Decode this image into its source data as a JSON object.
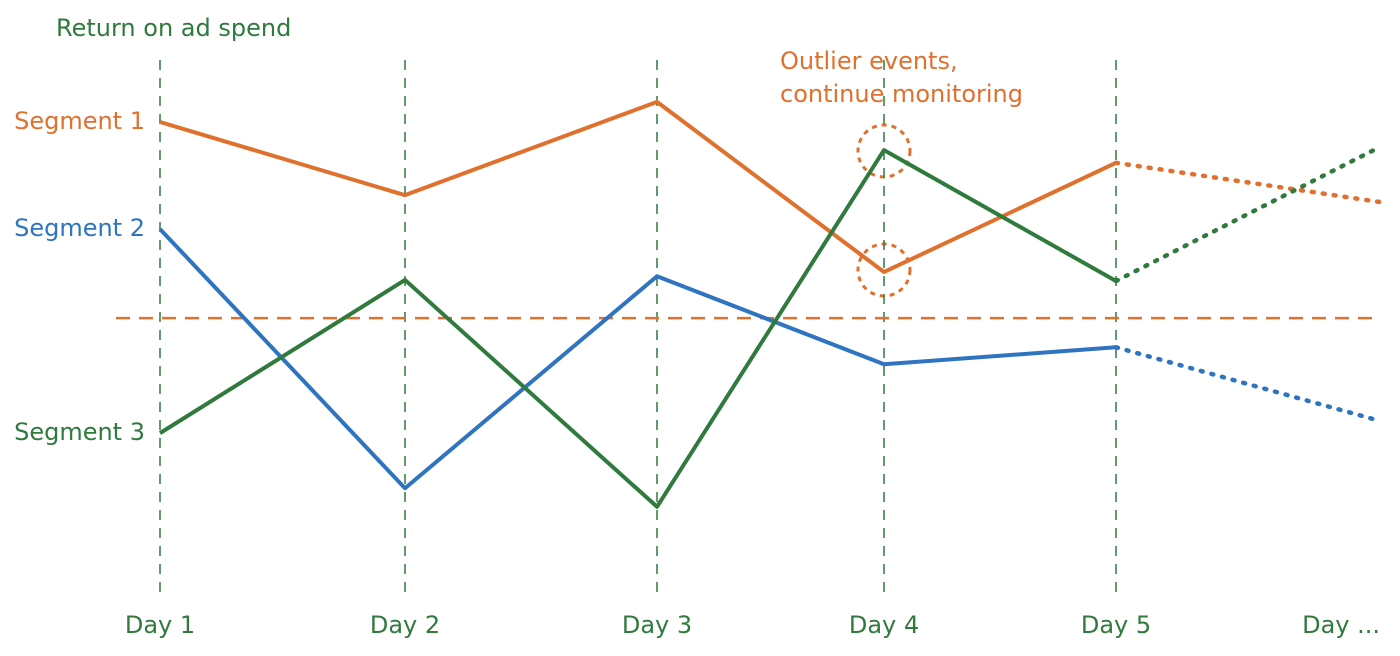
{
  "chart_data": {
    "type": "line",
    "title": "Return on ad spend",
    "categories": [
      "Day 1",
      "Day 2",
      "Day 3",
      "Day 4",
      "Day 5",
      "Day ..."
    ],
    "projection_start": "Day 5",
    "ylim": [
      0,
      100
    ],
    "threshold": {
      "value": 51.3,
      "color": "#e0702e"
    },
    "grid_color": "#2f7a3c",
    "annotation": [
      "Outlier events,",
      "continue monitoring"
    ],
    "annotation_color": "#e0702e",
    "series": [
      {
        "name": "Segment 1",
        "color": "#e0702e",
        "values": [
          88.3,
          74.5,
          92.1,
          60,
          80.6,
          73.2
        ]
      },
      {
        "name": "Segment 2",
        "color": "#2f74c0",
        "values": [
          68.1,
          19.2,
          59.2,
          42.6,
          45.8,
          31.9
        ]
      },
      {
        "name": "Segment 3",
        "color": "#2f7a3c",
        "values": [
          29.6,
          58.5,
          15.7,
          83,
          58.3,
          83.6
        ]
      }
    ]
  }
}
